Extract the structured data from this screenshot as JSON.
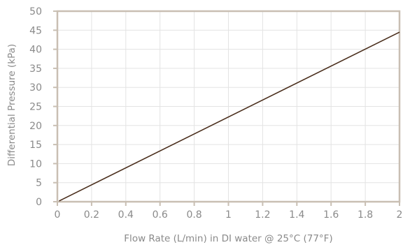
{
  "chart_data": {
    "type": "line",
    "title": "",
    "xlabel": "Flow Rate (L/min) in DI water @ 25°C (77°F)",
    "ylabel": "Differential Pressure (kPa)",
    "xlim": [
      0,
      2
    ],
    "ylim": [
      0,
      50
    ],
    "x_ticks": [
      "0",
      "0.2",
      "0.4",
      "0.6",
      "0.8",
      "1",
      "1.2",
      "1.4",
      "1.6",
      "1.8",
      "2"
    ],
    "y_ticks": [
      "0",
      "5",
      "10",
      "15",
      "20",
      "25",
      "30",
      "35",
      "40",
      "45",
      "50"
    ],
    "grid": true,
    "series": [
      {
        "x": [
          0.01,
          2.0
        ],
        "y": [
          0.2,
          44.5
        ]
      }
    ],
    "colors": {
      "line": "#4a2e1c",
      "axis": "#c9bfb3",
      "grid": "#e3e3e3",
      "text": "#8a8a8a"
    }
  }
}
